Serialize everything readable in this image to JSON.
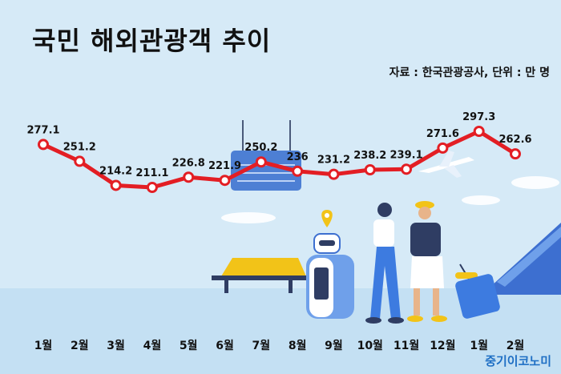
{
  "title": "국민 해외관광객 추이",
  "source_note": "자료 : 한국관광공사, 단위 : 만 명",
  "brand": "중기이코노미",
  "colors": {
    "line": "#e31e24",
    "marker_fill": "#ffffff",
    "background": "#d6eaf7"
  },
  "chart_data": {
    "type": "line",
    "title": "국민 해외관광객 추이",
    "unit": "만 명",
    "categories": [
      "1월",
      "2월",
      "3월",
      "4월",
      "5월",
      "6월",
      "7월",
      "8월",
      "9월",
      "10월",
      "11월",
      "12월",
      "1월",
      "2월"
    ],
    "values": [
      277.1,
      251.2,
      214.2,
      211.1,
      226.8,
      221.9,
      250.2,
      236,
      231.2,
      238.2,
      239.1,
      271.6,
      297.3,
      262.6
    ],
    "value_labels": [
      "277.1",
      "251.2",
      "214.2",
      "211.1",
      "226.8",
      "221.9",
      "250.2",
      "236",
      "231.2",
      "238.2",
      "239.1",
      "271.6",
      "297.3",
      "262.6"
    ],
    "grid": false,
    "legend": "none"
  }
}
